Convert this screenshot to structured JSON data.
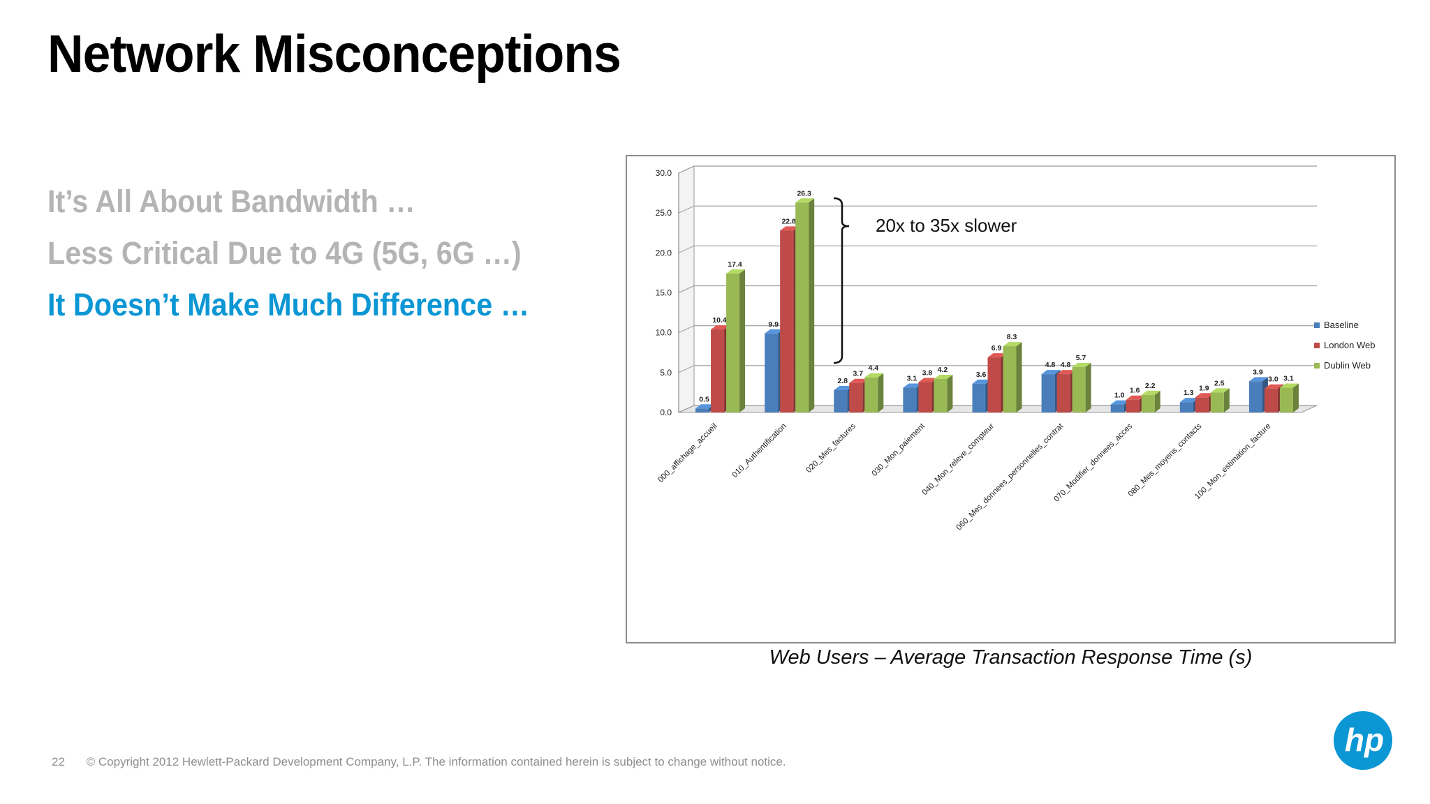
{
  "slide": {
    "title": "Network Misconceptions",
    "bullets": [
      {
        "text": "It’s All About Bandwidth …",
        "state": "dim"
      },
      {
        "text": "Less Critical Due to 4G (5G, 6G …)",
        "state": "dim"
      },
      {
        "text": "It Doesn’t Make Much Difference …",
        "state": "active"
      }
    ],
    "caption": "Web Users – Average Transaction Response Time (s)",
    "page_number": "22",
    "copyright": "© Copyright 2012 Hewlett-Packard Development Company, L.P.  The information contained herein is subject to change without notice.",
    "logo_text": "hp"
  },
  "colors": {
    "title": "#000000",
    "bullet_dim": "#b4b4b4",
    "bullet_active": "#0b96d4",
    "baseline": "#4a7ebb",
    "london": "#be4b48",
    "dublin": "#98b954",
    "logo": "#0b96d4"
  },
  "chart_data": {
    "type": "bar",
    "title": "",
    "xlabel": "",
    "ylabel": "",
    "ylim": [
      0,
      30
    ],
    "yticks": [
      "0.0",
      "5.0",
      "10.0",
      "15.0",
      "20.0",
      "25.0",
      "30.0"
    ],
    "grid": true,
    "legend_position": "right",
    "categories": [
      "000_affichage_accueil",
      "010_Authentification",
      "020_Mes_factures",
      "030_Mon_paiement",
      "040_Mon_releve_compteur",
      "060_Mes_donnees_personnelles_contrat",
      "070_Modifier_donnees_acces",
      "080_Mes_moyens_contacts",
      "100_Mon_estimation_facture"
    ],
    "series": [
      {
        "name": "Baseline",
        "values": [
          0.5,
          9.9,
          2.8,
          3.1,
          3.6,
          4.8,
          1.0,
          1.3,
          3.9
        ]
      },
      {
        "name": "London Web",
        "values": [
          10.4,
          22.8,
          3.7,
          3.8,
          6.9,
          4.8,
          1.6,
          1.9,
          3.0
        ]
      },
      {
        "name": "Dublin Web",
        "values": [
          17.4,
          26.3,
          4.4,
          4.2,
          8.3,
          5.7,
          2.2,
          2.5,
          3.1
        ]
      }
    ],
    "annotation": "20x to 35x slower"
  }
}
